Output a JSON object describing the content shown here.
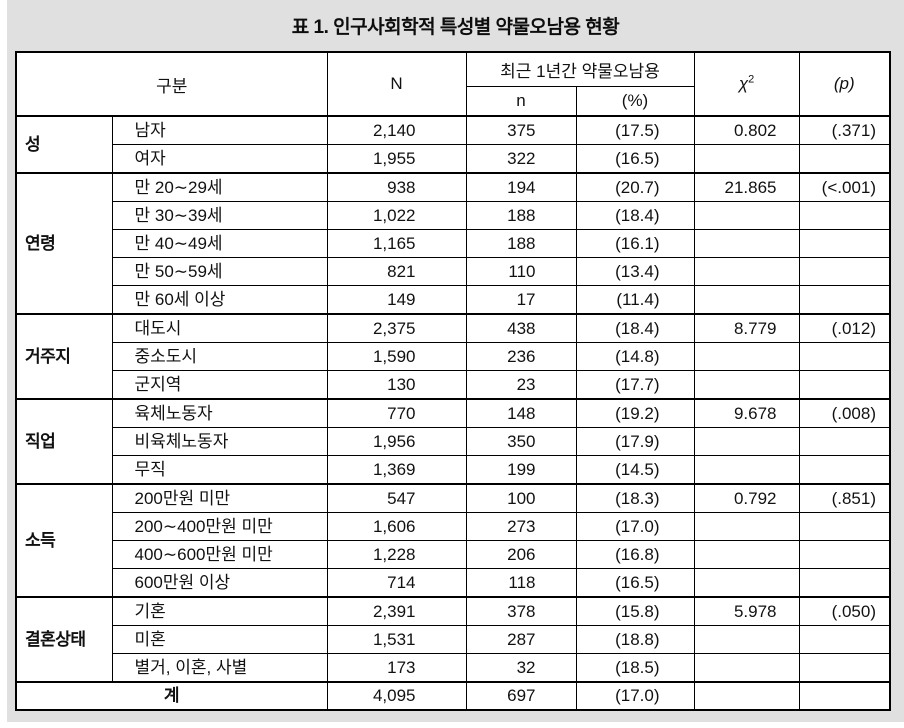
{
  "title": "표 1. 인구사회학적 특성별 약물오남용 현황",
  "colors": {
    "page_background": "#e0e0e0",
    "table_background": "#ffffff",
    "border": "#000000",
    "text": "#111111"
  },
  "table": {
    "headers": {
      "category": "구분",
      "N": "N",
      "recent_group": "최근 1년간 약물오남용",
      "n": "n",
      "pct": "(%)",
      "chi_base": "χ",
      "chi_sup": "2",
      "p": "(p)"
    },
    "groups": [
      {
        "label": "성",
        "rows": [
          {
            "label": "남자",
            "N": "2,140",
            "n": "375",
            "pct": "(17.5)",
            "chi2": "0.802",
            "p": "(.371)"
          },
          {
            "label": "여자",
            "N": "1,955",
            "n": "322",
            "pct": "(16.5)",
            "chi2": "",
            "p": ""
          }
        ]
      },
      {
        "label": "연령",
        "rows": [
          {
            "label": "만 20∼29세",
            "N": "938",
            "n": "194",
            "pct": "(20.7)",
            "chi2": "21.865",
            "p": "(<.001)"
          },
          {
            "label": "만 30∼39세",
            "N": "1,022",
            "n": "188",
            "pct": "(18.4)",
            "chi2": "",
            "p": ""
          },
          {
            "label": "만 40∼49세",
            "N": "1,165",
            "n": "188",
            "pct": "(16.1)",
            "chi2": "",
            "p": ""
          },
          {
            "label": "만 50∼59세",
            "N": "821",
            "n": "110",
            "pct": "(13.4)",
            "chi2": "",
            "p": ""
          },
          {
            "label": "만 60세 이상",
            "N": "149",
            "n": "17",
            "pct": "(11.4)",
            "chi2": "",
            "p": ""
          }
        ]
      },
      {
        "label": "거주지",
        "rows": [
          {
            "label": "대도시",
            "N": "2,375",
            "n": "438",
            "pct": "(18.4)",
            "chi2": "8.779",
            "p": "(.012)"
          },
          {
            "label": "중소도시",
            "N": "1,590",
            "n": "236",
            "pct": "(14.8)",
            "chi2": "",
            "p": ""
          },
          {
            "label": "군지역",
            "N": "130",
            "n": "23",
            "pct": "(17.7)",
            "chi2": "",
            "p": ""
          }
        ]
      },
      {
        "label": "직업",
        "rows": [
          {
            "label": "육체노동자",
            "N": "770",
            "n": "148",
            "pct": "(19.2)",
            "chi2": "9.678",
            "p": "(.008)"
          },
          {
            "label": "비육체노동자",
            "N": "1,956",
            "n": "350",
            "pct": "(17.9)",
            "chi2": "",
            "p": ""
          },
          {
            "label": "무직",
            "N": "1,369",
            "n": "199",
            "pct": "(14.5)",
            "chi2": "",
            "p": ""
          }
        ]
      },
      {
        "label": "소득",
        "rows": [
          {
            "label": "200만원 미만",
            "N": "547",
            "n": "100",
            "pct": "(18.3)",
            "chi2": "0.792",
            "p": "(.851)"
          },
          {
            "label": "200∼400만원 미만",
            "N": "1,606",
            "n": "273",
            "pct": "(17.0)",
            "chi2": "",
            "p": ""
          },
          {
            "label": "400∼600만원 미만",
            "N": "1,228",
            "n": "206",
            "pct": "(16.8)",
            "chi2": "",
            "p": ""
          },
          {
            "label": "600만원 이상",
            "N": "714",
            "n": "118",
            "pct": "(16.5)",
            "chi2": "",
            "p": ""
          }
        ]
      },
      {
        "label": "결혼상태",
        "rows": [
          {
            "label": "기혼",
            "N": "2,391",
            "n": "378",
            "pct": "(15.8)",
            "chi2": "5.978",
            "p": "(.050)"
          },
          {
            "label": "미혼",
            "N": "1,531",
            "n": "287",
            "pct": "(18.8)",
            "chi2": "",
            "p": ""
          },
          {
            "label": "별거, 이혼, 사별",
            "N": "173",
            "n": "32",
            "pct": "(18.5)",
            "chi2": "",
            "p": ""
          }
        ]
      }
    ],
    "total": {
      "label": "계",
      "N": "4,095",
      "n": "697",
      "pct": "(17.0)",
      "chi2": "",
      "p": ""
    }
  }
}
